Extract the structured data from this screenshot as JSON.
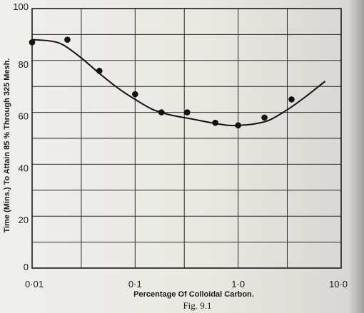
{
  "chart_data": {
    "type": "scatter",
    "title": "",
    "xlabel": "Percentage Of Colloidal Carbon.",
    "ylabel": "Time (Mins.) To Attain 85 % Through 325 Mesh.",
    "x_scale": "log",
    "xlim": [
      0.01,
      10
    ],
    "ylim": [
      0,
      100
    ],
    "x_ticks": [
      0.01,
      0.1,
      1.0,
      10.0
    ],
    "x_tick_labels": [
      "0·01",
      "0·1",
      "1·0",
      "10·0"
    ],
    "y_ticks": [
      0,
      20,
      40,
      60,
      80,
      100
    ],
    "y_tick_labels": [
      "0",
      "20",
      "40",
      "60",
      "80",
      "100"
    ],
    "grid": true,
    "legend": "none",
    "series": [
      {
        "kind": "points",
        "x": [
          0.01,
          0.022,
          0.045,
          0.1,
          0.18,
          0.32,
          0.6,
          1.0,
          1.8,
          3.3
        ],
        "y": [
          87,
          88,
          76,
          67,
          60,
          60,
          56,
          55,
          58,
          65
        ]
      },
      {
        "kind": "fitted-curve",
        "x": [
          0.01,
          0.015,
          0.02,
          0.03,
          0.045,
          0.07,
          0.1,
          0.15,
          0.22,
          0.35,
          0.55,
          0.8,
          1.0,
          1.4,
          2.0,
          3.0,
          4.5,
          7.0
        ],
        "y": [
          88,
          87.5,
          86,
          81,
          75,
          69,
          65,
          61,
          59,
          57.5,
          56,
          55,
          55,
          55.5,
          57,
          61,
          66,
          72
        ]
      }
    ],
    "caption": "Fig. 9.1"
  }
}
